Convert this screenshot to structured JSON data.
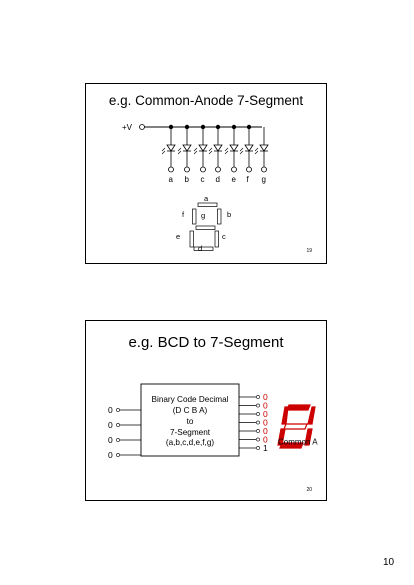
{
  "slide1": {
    "title": "e.g. Common-Anode 7-Segment",
    "supply_label": "+V",
    "pin_labels": [
      "a",
      "b",
      "c",
      "d",
      "e",
      "f",
      "g"
    ],
    "segment_labels": {
      "a": "a",
      "b": "b",
      "c": "c",
      "d": "d",
      "e": "e",
      "f": "f",
      "g": "g"
    },
    "slide_number": "19"
  },
  "slide2": {
    "title": "e.g. BCD to 7-Segment",
    "inputs": [
      "0",
      "0",
      "0",
      "0"
    ],
    "block_lines": [
      "Binary Code Decimal",
      "(D C B A)",
      "to",
      "7-Segment",
      "(a,b,c,d,e,f,g)"
    ],
    "outputs": [
      "0",
      "0",
      "0",
      "0",
      "0",
      "0",
      "1"
    ],
    "display_label": "Common A",
    "slide_number": "20",
    "colors": {
      "display_red": "#cc0000",
      "display_off": "#ffffff"
    }
  },
  "page_number": "10"
}
